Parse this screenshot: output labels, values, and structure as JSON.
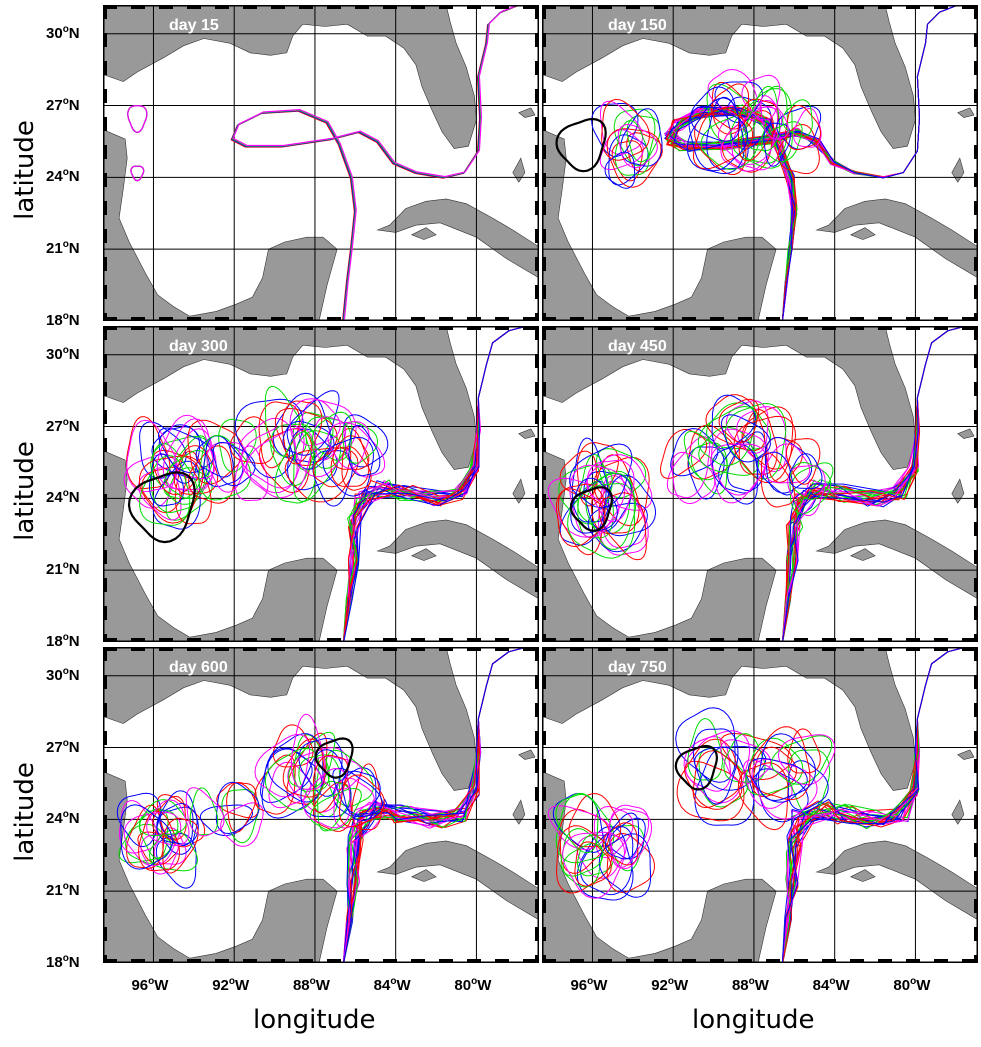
{
  "figure": {
    "ylabel": "latitude",
    "xlabel": "longitude",
    "colors": {
      "land": "#999999",
      "ocean": "#ffffff",
      "grid": "#000000",
      "series": [
        "#ff0000",
        "#0000ff",
        "#00dd00",
        "#ff00ff"
      ],
      "highlight": "#000000",
      "day_label": "#ffffff"
    }
  },
  "chart_data": {
    "type": "map",
    "lon_range": [
      -98.5,
      -76.9
    ],
    "lat_range_rows": [
      [
        18,
        31.2
      ],
      [
        18,
        31.2
      ],
      [
        18,
        31.2
      ]
    ],
    "lon_ticks": [
      {
        "deg": "96",
        "hem": "W"
      },
      {
        "deg": "92",
        "hem": "W"
      },
      {
        "deg": "88",
        "hem": "W"
      },
      {
        "deg": "84",
        "hem": "W"
      },
      {
        "deg": "80",
        "hem": "W"
      }
    ],
    "lat_ticks": [
      {
        "deg": "30",
        "hem": "N"
      },
      {
        "deg": "27",
        "hem": "N"
      },
      {
        "deg": "24",
        "hem": "N"
      },
      {
        "deg": "21",
        "hem": "N"
      },
      {
        "deg": "18",
        "hem": "N"
      }
    ],
    "panels": [
      {
        "label": "day 15",
        "row": 0,
        "col": 0,
        "spread": 0.05
      },
      {
        "label": "day 150",
        "row": 0,
        "col": 1,
        "spread": 0.55
      },
      {
        "label": "day 300",
        "row": 1,
        "col": 0,
        "spread": 0.85
      },
      {
        "label": "day 450",
        "row": 1,
        "col": 1,
        "spread": 0.9
      },
      {
        "label": "day 600",
        "row": 2,
        "col": 0,
        "spread": 0.95
      },
      {
        "label": "day 750",
        "row": 2,
        "col": 1,
        "spread": 1.0
      }
    ]
  }
}
